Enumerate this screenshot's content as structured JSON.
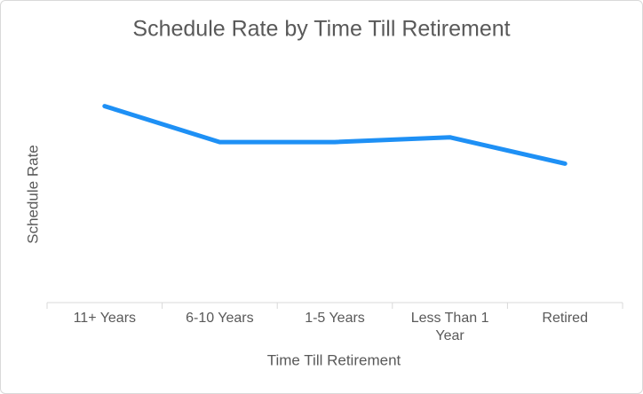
{
  "chart_data": {
    "type": "line",
    "title": "Schedule Rate by Time Till Retirement",
    "x_label": "Time Till Retirement",
    "y_label": "Schedule Rate",
    "categories": [
      "11+ Years",
      "6-10 Years",
      "1-5 Years",
      "Less Than 1 Year",
      "Retired"
    ],
    "series": [
      {
        "name": "Schedule Rate",
        "color": "#1e90f5",
        "values": [
          0.82,
          0.67,
          0.67,
          0.69,
          0.58
        ]
      }
    ],
    "ylim": [
      0,
      1
    ],
    "grid": false
  }
}
